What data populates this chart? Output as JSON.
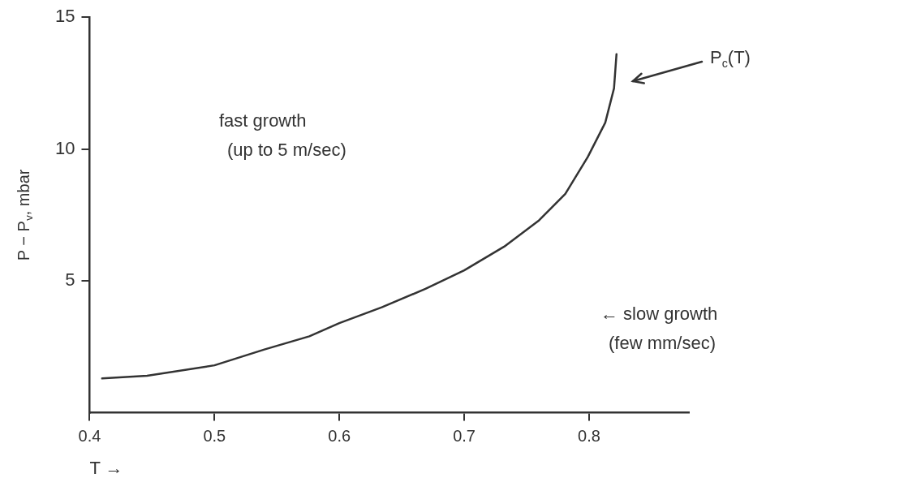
{
  "chart_data": {
    "type": "line",
    "xlabel": "T →",
    "ylabel": "P − P$_{v}$, mbar",
    "x": [
      0.41,
      0.446,
      0.5,
      0.54,
      0.576,
      0.6,
      0.634,
      0.669,
      0.7,
      0.732,
      0.76,
      0.781,
      0.799,
      0.813,
      0.82,
      0.822
    ],
    "series": [
      {
        "color": "#333333",
        "values": [
          1.3,
          1.4,
          1.8,
          2.4,
          2.9,
          3.4,
          4.0,
          4.7,
          5.4,
          6.3,
          7.3,
          8.3,
          9.7,
          11.0,
          12.3,
          13.6
        ]
      }
    ],
    "xlim": [
      0.4,
      0.88
    ],
    "xticks": [
      0.4,
      0.5,
      0.6,
      0.7,
      0.8
    ],
    "ylim": [
      0,
      15
    ],
    "yticks": [
      5,
      10,
      15
    ],
    "annotations": [
      "fast growth (up to 5 m/sec)",
      "P$_{c}$(T)",
      "← slow growth (few mm/sec)"
    ],
    "grid": false,
    "legend": false,
    "marker": "none",
    "line_style": "solid"
  }
}
